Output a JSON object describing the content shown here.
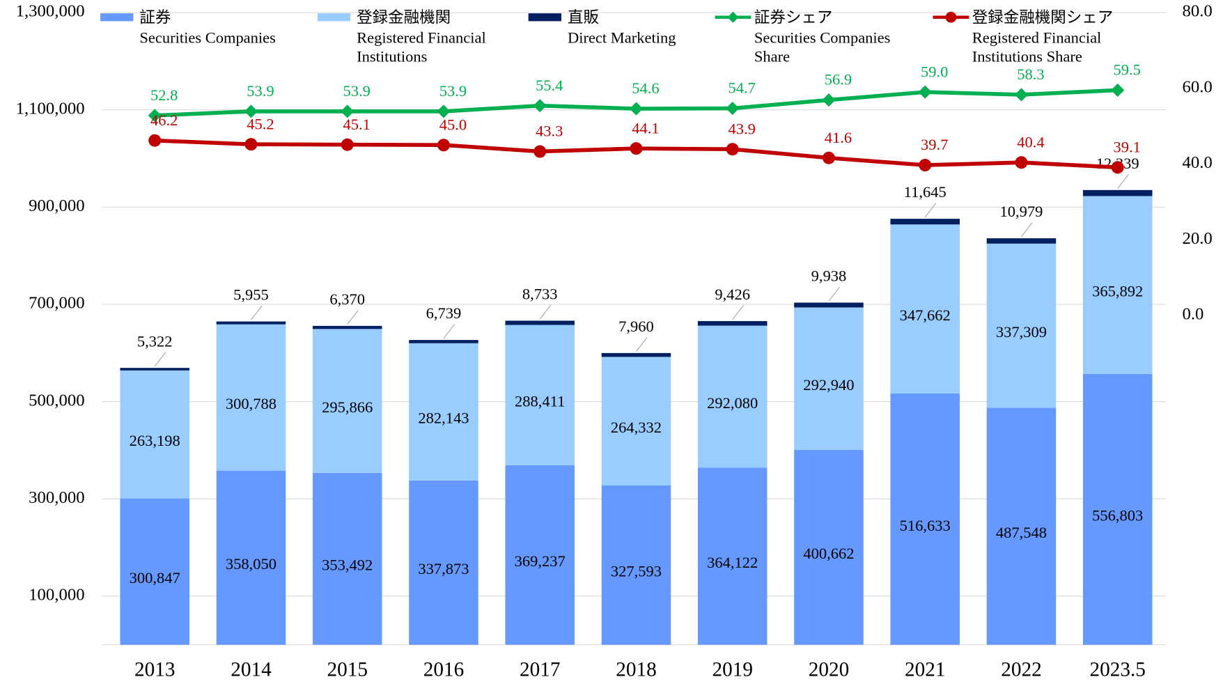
{
  "chart_data": {
    "type": "bar",
    "categories": [
      "2013",
      "2014",
      "2015",
      "2016",
      "2017",
      "2018",
      "2019",
      "2020",
      "2021",
      "2022",
      "2023.5"
    ],
    "ylim": [
      0,
      1300000
    ],
    "yticks": [
      {
        "value": 100000,
        "label": "100,000"
      },
      {
        "value": 300000,
        "label": "300,000"
      },
      {
        "value": 500000,
        "label": "500,000"
      },
      {
        "value": 700000,
        "label": "700,000"
      },
      {
        "value": 900000,
        "label": "900,000"
      },
      {
        "value": 1100000,
        "label": "1,100,000"
      },
      {
        "value": 1300000,
        "label": "1,300,000"
      }
    ],
    "y2lim": [
      -87,
      80
    ],
    "y2ticks": [
      {
        "value": 0,
        "label": "0.0"
      },
      {
        "value": 20,
        "label": "20.0"
      },
      {
        "value": 40,
        "label": "40.0"
      },
      {
        "value": 60,
        "label": "60.0"
      },
      {
        "value": 80,
        "label": "80.0"
      }
    ],
    "grid": true,
    "series": [
      {
        "name": "証券",
        "name_en": [
          "Securities Companies"
        ],
        "type": "bar",
        "color": "#6699ff",
        "values": [
          300847,
          358050,
          353492,
          337873,
          369237,
          327593,
          364122,
          400662,
          516633,
          487548,
          556803
        ],
        "value_labels": [
          "300,847",
          "358,050",
          "353,492",
          "337,873",
          "369,237",
          "327,593",
          "364,122",
          "400,662",
          "516,633",
          "487,548",
          "556,803"
        ]
      },
      {
        "name": "登録金融機関",
        "name_en": [
          "Registered Financial",
          "Institutions"
        ],
        "type": "bar",
        "color": "#99ccff",
        "values": [
          263198,
          300788,
          295866,
          282143,
          288411,
          264332,
          292080,
          292940,
          347662,
          337309,
          365892
        ],
        "value_labels": [
          "263,198",
          "300,788",
          "295,866",
          "282,143",
          "288,411",
          "264,332",
          "292,080",
          "292,940",
          "347,662",
          "337,309",
          "365,892"
        ]
      },
      {
        "name": "直販",
        "name_en": [
          "Direct Marketing"
        ],
        "type": "bar",
        "color": "#002060",
        "values": [
          5322,
          5955,
          6370,
          6739,
          8733,
          7960,
          9426,
          9938,
          11645,
          10979,
          12339
        ],
        "value_labels": [
          "5,322",
          "5,955",
          "6,370",
          "6,739",
          "8,733",
          "7,960",
          "9,426",
          "9,938",
          "11,645",
          "10,979",
          "12,339"
        ]
      },
      {
        "name": "証券シェア",
        "name_en": [
          "Securities Companies",
          "Share"
        ],
        "type": "line",
        "axis": "y2",
        "color": "#00b050",
        "values": [
          52.8,
          53.9,
          53.9,
          53.9,
          55.4,
          54.6,
          54.7,
          56.9,
          59.0,
          58.3,
          59.5
        ],
        "value_labels": [
          "52.8",
          "53.9",
          "53.9",
          "53.9",
          "55.4",
          "54.6",
          "54.7",
          "56.9",
          "59.0",
          "58.3",
          "59.5"
        ]
      },
      {
        "name": "登録金融機関シェア",
        "name_en": [
          "Registered Financial",
          "Institutions Share"
        ],
        "type": "line",
        "axis": "y2",
        "color": "#c00000",
        "values": [
          46.2,
          45.2,
          45.1,
          45.0,
          43.3,
          44.1,
          43.9,
          41.6,
          39.7,
          40.4,
          39.1
        ],
        "value_labels": [
          "46.2",
          "45.2",
          "45.1",
          "45.0",
          "43.3",
          "44.1",
          "43.9",
          "41.6",
          "39.7",
          "40.4",
          "39.1"
        ]
      }
    ]
  }
}
